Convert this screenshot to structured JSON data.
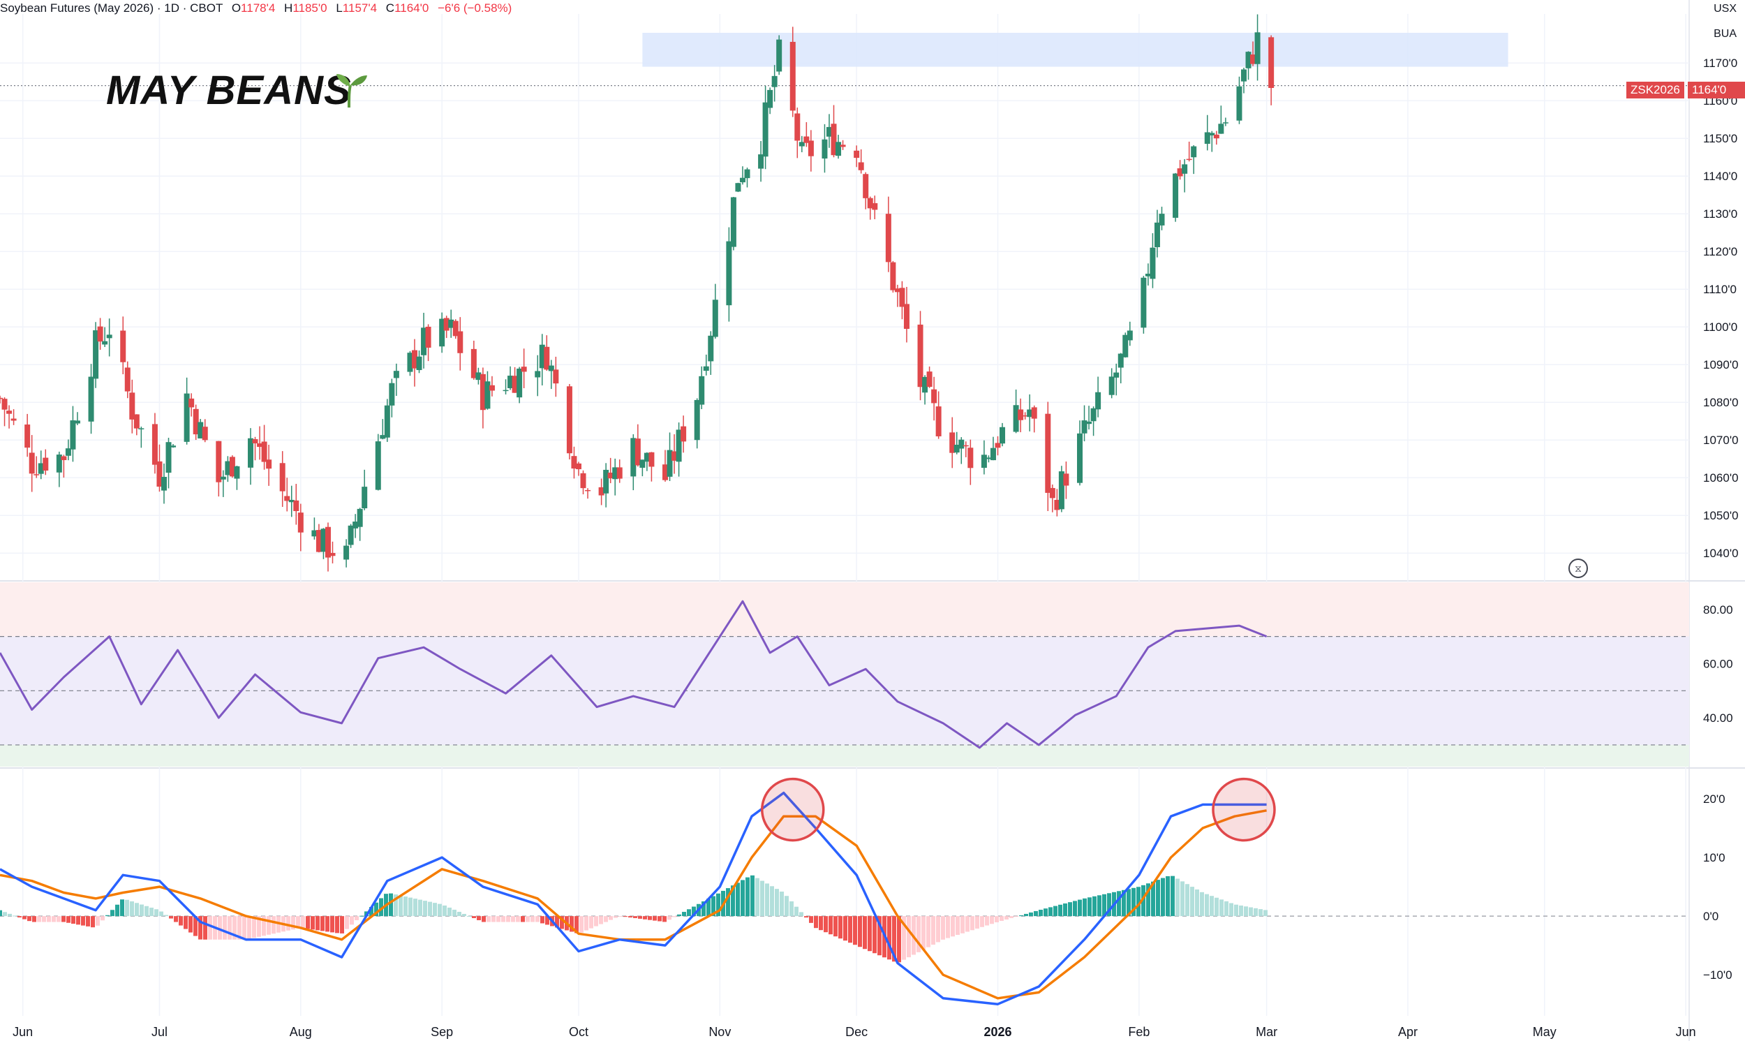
{
  "header": {
    "title": "Soybean Futures (May 2026)",
    "interval": "1D",
    "exchange": "CBOT",
    "open_label": "O",
    "open": "1178'4",
    "high_label": "H",
    "high": "1185'0",
    "low_label": "L",
    "low": "1157'4",
    "close_label": "C",
    "close": "1164'0",
    "change": "−6'6 (−0.58%)"
  },
  "branding": {
    "text": "MAY BEANS",
    "icon": "sprout-icon"
  },
  "currency": {
    "line1": "USX",
    "line2": "BUA"
  },
  "last_price": {
    "symbol": "ZSK2026",
    "value": "1164'0"
  },
  "colors": {
    "up": "#26a69a",
    "up_dark": "#2e8b70",
    "down": "#e0484b",
    "rsi_line": "#7e57c2",
    "macd_line": "#2962ff",
    "signal_line": "#f57c00",
    "resistance_zone": "#dbe6fd",
    "marker_circle": "#e0484b"
  },
  "icons": {
    "replay": "hourglass-icon"
  },
  "chart_data": [
    {
      "type": "candlestick",
      "title": "Soybean Futures (May 2026)",
      "ylim": [
        1033,
        1183
      ],
      "y_ticks": [
        "1040'0",
        "1050'0",
        "1060'0",
        "1070'0",
        "1080'0",
        "1090'0",
        "1100'0",
        "1110'0",
        "1120'0",
        "1130'0",
        "1140'0",
        "1150'0",
        "1160'0",
        "1170'0"
      ],
      "x_ticks": [
        "Jun",
        "Jul",
        "Aug",
        "Sep",
        "Oct",
        "Nov",
        "Dec",
        "2026",
        "Feb",
        "Mar",
        "Apr",
        "May",
        "Jun"
      ],
      "x_tick_dates": [
        "2025-06-01",
        "2025-07-01",
        "2025-08-01",
        "2025-09-01",
        "2025-10-01",
        "2025-11-01",
        "2025-12-01",
        "2026-01-01",
        "2026-02-01",
        "2026-03-01",
        "2026-04-01",
        "2026-05-01",
        "2026-06-01"
      ],
      "x_range": [
        "2025-05-27",
        "2026-06-14"
      ],
      "resistance_zone": {
        "from_date": "2025-10-15",
        "to_date": "2026-04-23",
        "low": 1169,
        "high": 1178
      },
      "last_close": 1164,
      "series_close": [
        [
          "2025-05-27",
          1081
        ],
        [
          "2025-06-03",
          1064
        ],
        [
          "2025-06-10",
          1066
        ],
        [
          "2025-06-17",
          1095
        ],
        [
          "2025-06-20",
          1100
        ],
        [
          "2025-06-25",
          1078
        ],
        [
          "2025-07-01",
          1061
        ],
        [
          "2025-07-07",
          1082
        ],
        [
          "2025-07-14",
          1059
        ],
        [
          "2025-07-21",
          1071
        ],
        [
          "2025-07-28",
          1056
        ],
        [
          "2025-08-05",
          1043
        ],
        [
          "2025-08-11",
          1039
        ],
        [
          "2025-08-15",
          1058
        ],
        [
          "2025-08-21",
          1083
        ],
        [
          "2025-08-28",
          1096
        ],
        [
          "2025-09-03",
          1099
        ],
        [
          "2025-09-10",
          1082
        ],
        [
          "2025-09-17",
          1087
        ],
        [
          "2025-09-24",
          1093
        ],
        [
          "2025-10-01",
          1062
        ],
        [
          "2025-10-06",
          1057
        ],
        [
          "2025-10-13",
          1068
        ],
        [
          "2025-10-20",
          1060
        ],
        [
          "2025-10-27",
          1082
        ],
        [
          "2025-11-01",
          1112
        ],
        [
          "2025-11-05",
          1140
        ],
        [
          "2025-11-10",
          1150
        ],
        [
          "2025-11-14",
          1172
        ],
        [
          "2025-11-19",
          1145
        ],
        [
          "2025-11-25",
          1150
        ],
        [
          "2025-12-01",
          1148
        ],
        [
          "2025-12-05",
          1128
        ],
        [
          "2025-12-10",
          1108
        ],
        [
          "2025-12-15",
          1085
        ],
        [
          "2025-12-20",
          1072
        ],
        [
          "2025-12-28",
          1064
        ],
        [
          "2026-01-02",
          1072
        ],
        [
          "2026-01-08",
          1078
        ],
        [
          "2026-01-13",
          1053
        ],
        [
          "2026-01-20",
          1072
        ],
        [
          "2026-01-27",
          1088
        ],
        [
          "2026-02-01",
          1102
        ],
        [
          "2026-02-05",
          1130
        ],
        [
          "2026-02-10",
          1142
        ],
        [
          "2026-02-16",
          1150
        ],
        [
          "2026-02-20",
          1155
        ],
        [
          "2026-02-25",
          1170
        ],
        [
          "2026-02-27",
          1176
        ],
        [
          "2026-03-02",
          1164
        ]
      ]
    },
    {
      "type": "line",
      "name": "RSI",
      "ylim": [
        22,
        90
      ],
      "y_ticks": [
        40,
        60,
        80
      ],
      "y_tick_labels": [
        "40.00",
        "60.00",
        "80.00"
      ],
      "bands": [
        30,
        50,
        70
      ],
      "series": [
        {
          "name": "",
          "x_dates": [
            "2025-05-27",
            "2025-06-03",
            "2025-06-10",
            "2025-06-20",
            "2025-06-27",
            "2025-07-05",
            "2025-07-14",
            "2025-07-22",
            "2025-08-01",
            "2025-08-10",
            "2025-08-18",
            "2025-08-28",
            "2025-09-05",
            "2025-09-15",
            "2025-09-25",
            "2025-10-05",
            "2025-10-13",
            "2025-10-22",
            "2025-11-01",
            "2025-11-06",
            "2025-11-12",
            "2025-11-18",
            "2025-11-25",
            "2025-12-03",
            "2025-12-10",
            "2025-12-20",
            "2025-12-28",
            "2026-01-03",
            "2026-01-10",
            "2026-01-18",
            "2026-01-27",
            "2026-02-03",
            "2026-02-09",
            "2026-02-16",
            "2026-02-23",
            "2026-03-01"
          ],
          "values": [
            64,
            43,
            55,
            70,
            45,
            65,
            40,
            56,
            42,
            38,
            62,
            66,
            58,
            49,
            63,
            44,
            48,
            44,
            70,
            83,
            64,
            70,
            52,
            58,
            46,
            38,
            29,
            38,
            30,
            41,
            48,
            66,
            72,
            73,
            74,
            70
          ]
        }
      ]
    },
    {
      "type": "line",
      "name": "MACD",
      "ylim": [
        -17,
        25
      ],
      "y_ticks": [
        -10,
        0,
        10,
        20
      ],
      "y_tick_labels": [
        "−10'0",
        "0'0",
        "10'0",
        "20'0"
      ],
      "series": [
        {
          "name": "",
          "x_dates": [
            "2025-05-27",
            "2025-06-03",
            "2025-06-10",
            "2025-06-17",
            "2025-06-23",
            "2025-07-01",
            "2025-07-10",
            "2025-07-20",
            "2025-08-01",
            "2025-08-10",
            "2025-08-20",
            "2025-09-01",
            "2025-09-10",
            "2025-09-22",
            "2025-10-01",
            "2025-10-10",
            "2025-10-20",
            "2025-11-01",
            "2025-11-08",
            "2025-11-15",
            "2025-11-22",
            "2025-12-01",
            "2025-12-10",
            "2025-12-20",
            "2026-01-01",
            "2026-01-10",
            "2026-01-20",
            "2026-02-01",
            "2026-02-08",
            "2026-02-15",
            "2026-02-22",
            "2026-03-01"
          ],
          "values": [
            8,
            5,
            3,
            1,
            7,
            6,
            -1,
            -4,
            -4,
            -7,
            6,
            10,
            5,
            2,
            -6,
            -4,
            -5,
            5,
            17,
            21,
            15,
            7,
            -8,
            -14,
            -15,
            -12,
            -4,
            7,
            17,
            19,
            19,
            19
          ]
        },
        {
          "name": "",
          "x_dates": [
            "2025-05-27",
            "2025-06-03",
            "2025-06-10",
            "2025-06-17",
            "2025-06-23",
            "2025-07-01",
            "2025-07-10",
            "2025-07-20",
            "2025-08-01",
            "2025-08-10",
            "2025-08-20",
            "2025-09-01",
            "2025-09-10",
            "2025-09-22",
            "2025-10-01",
            "2025-10-10",
            "2025-10-20",
            "2025-11-01",
            "2025-11-08",
            "2025-11-15",
            "2025-11-22",
            "2025-12-01",
            "2025-12-10",
            "2025-12-20",
            "2026-01-01",
            "2026-01-10",
            "2026-01-20",
            "2026-02-01",
            "2026-02-08",
            "2026-02-15",
            "2026-02-22",
            "2026-03-01"
          ],
          "values": [
            7,
            6,
            4,
            3,
            4,
            5,
            3,
            0,
            -2,
            -4,
            2,
            8,
            6,
            3,
            -3,
            -4,
            -4,
            1,
            10,
            17,
            17,
            12,
            0,
            -10,
            -14,
            -13,
            -7,
            2,
            10,
            15,
            17,
            18
          ]
        }
      ],
      "highlight_circles_dates": [
        "2025-11-17",
        "2026-02-24"
      ]
    }
  ]
}
